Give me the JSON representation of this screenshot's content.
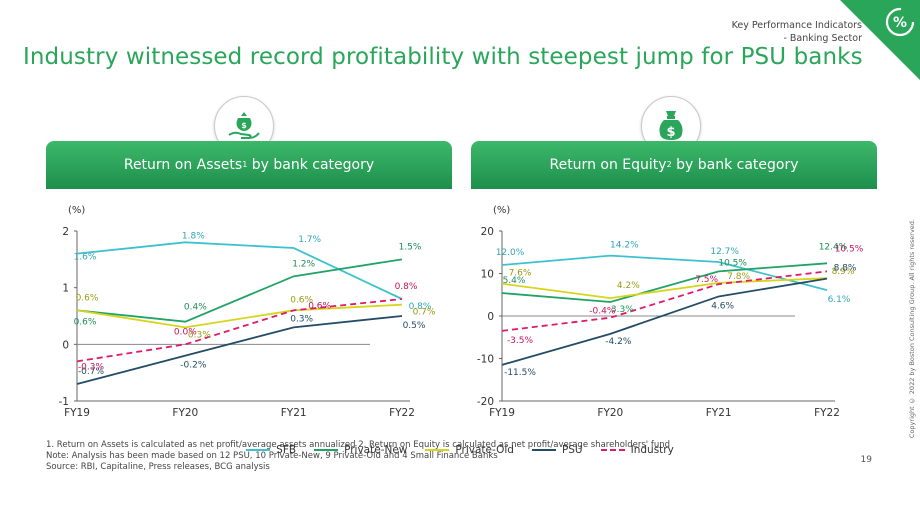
{
  "header": {
    "line1": "Key Performance Indicators",
    "line2": "- Banking Sector",
    "corner_icon": "percent-gauge-icon",
    "corner_color": "#29a659"
  },
  "title": "Industry witnessed record profitability with steepest jump for PSU banks",
  "panels": {
    "left": {
      "title_main": "Return on Assets",
      "title_sup": "1",
      "title_rest": " by bank category",
      "icon": "money-bag-hand-icon"
    },
    "right": {
      "title_main": "Return on Equity",
      "title_sup": "2",
      "title_rest": " by bank category",
      "icon": "dollar-bag-icon"
    }
  },
  "legend": [
    {
      "name": "SFB",
      "color": "#3ec1cf",
      "dash": false
    },
    {
      "name": "Private-New",
      "color": "#21a366",
      "dash": false
    },
    {
      "name": "Private-Old",
      "color": "#d6d51c",
      "dash": false
    },
    {
      "name": "PSU",
      "color": "#234c66",
      "dash": false
    },
    {
      "name": "Industry",
      "color": "#e0196b",
      "dash": true
    }
  ],
  "chart_data": [
    {
      "type": "line",
      "title": "Return on Assets by bank category",
      "ylabel": "(%)",
      "categories": [
        "FY19",
        "FY20",
        "FY21",
        "FY22"
      ],
      "ylim": [
        -1,
        2
      ],
      "yticks": [
        "-1",
        "0",
        "1",
        "2"
      ],
      "zero_line": true,
      "series": [
        {
          "name": "SFB",
          "values": [
            1.6,
            1.8,
            1.7,
            0.8
          ],
          "labels": [
            "1.6%",
            "1.8%",
            "1.7%",
            "0.8%"
          ]
        },
        {
          "name": "Private-New",
          "values": [
            0.6,
            0.4,
            1.2,
            1.5
          ],
          "labels": [
            "0.6%",
            "0.4%",
            "1.2%",
            "1.5%"
          ]
        },
        {
          "name": "Private-Old",
          "values": [
            0.6,
            0.3,
            0.6,
            0.7
          ],
          "labels": [
            "0.6%",
            "0.3%",
            "0.6%",
            "0.7%"
          ]
        },
        {
          "name": "PSU",
          "values": [
            -0.7,
            -0.2,
            0.3,
            0.5
          ],
          "labels": [
            "-0.7%",
            "-0.2%",
            "0.3%",
            "0.5%"
          ]
        },
        {
          "name": "Industry",
          "values": [
            -0.3,
            0.0,
            0.6,
            0.8
          ],
          "labels": [
            "-0.3%",
            "0.0%",
            "0.6%",
            "0.8%"
          ]
        }
      ]
    },
    {
      "type": "line",
      "title": "Return on Equity by bank category",
      "ylabel": "(%)",
      "categories": [
        "FY19",
        "FY20",
        "FY21",
        "FY22"
      ],
      "ylim": [
        -20,
        20
      ],
      "yticks": [
        "-20",
        "-10",
        "0",
        "10",
        "20"
      ],
      "zero_line": true,
      "series": [
        {
          "name": "SFB",
          "values": [
            12.0,
            14.2,
            12.7,
            6.1
          ],
          "labels": [
            "12.0%",
            "14.2%",
            "12.7%",
            "6.1%"
          ]
        },
        {
          "name": "Private-New",
          "values": [
            5.4,
            3.3,
            10.5,
            12.4
          ],
          "labels": [
            "5.4%",
            "3.3%",
            "10.5%",
            "12.4%"
          ]
        },
        {
          "name": "Private-Old",
          "values": [
            7.6,
            4.2,
            7.8,
            8.9
          ],
          "labels": [
            "7.6%",
            "4.2%",
            "7.8%",
            "8.9%"
          ]
        },
        {
          "name": "PSU",
          "values": [
            -11.5,
            -4.2,
            4.6,
            8.8
          ],
          "labels": [
            "-11.5%",
            "-4.2%",
            "4.6%",
            "8.8%"
          ]
        },
        {
          "name": "Industry",
          "values": [
            -3.5,
            -0.4,
            7.5,
            10.5
          ],
          "labels": [
            "-3.5%",
            "-0.4%",
            "7.5%",
            "10.5%"
          ]
        }
      ]
    }
  ],
  "footnotes": {
    "line1": "1. Return on Assets is calculated as net profit/average assets annualized 2. Return on Equity is calculated as net profit/average shareholders' fund",
    "line2": "Note: Analysis has been made based on 12 PSU, 10 Private-New, 9 Private-Old and 4 Small Finance Banks",
    "line3": "Source: RBI, Capitaline, Press releases, BCG analysis"
  },
  "page_number": "19",
  "copyright": "Copyright © 2022 by Boston Consulting Group. All rights reserved."
}
